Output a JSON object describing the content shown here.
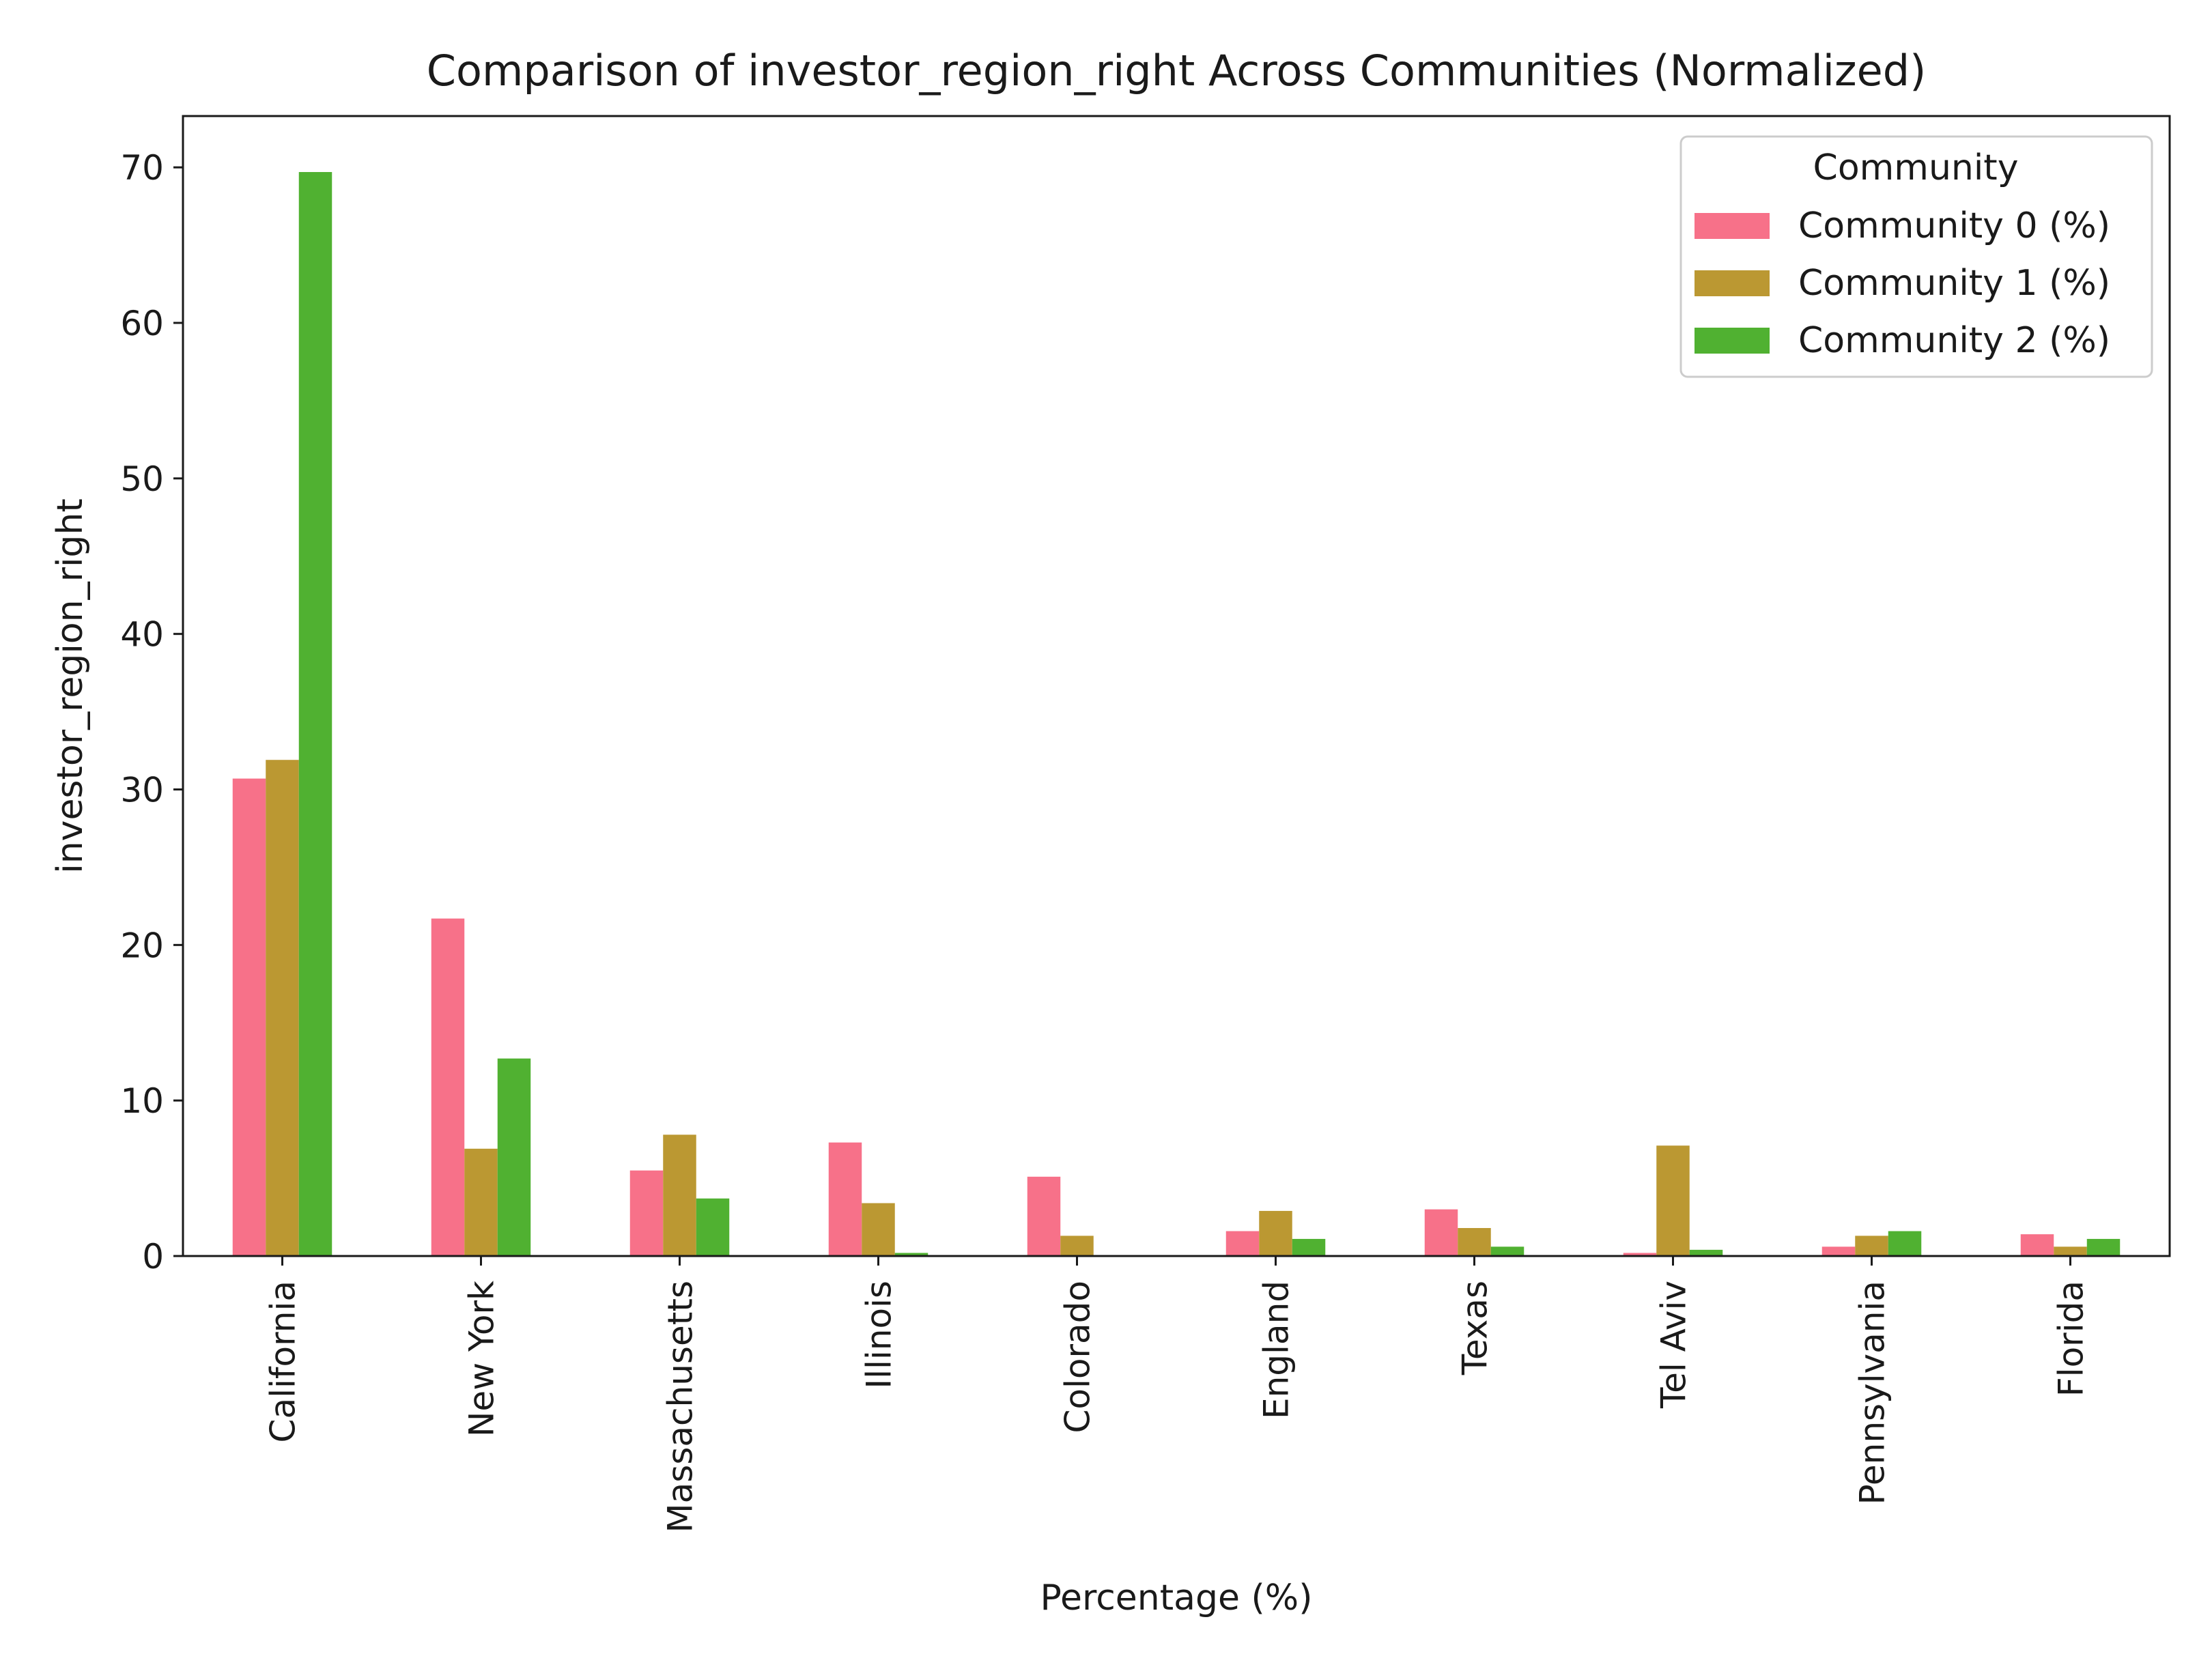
{
  "chart_data": {
    "type": "bar",
    "title": "Comparison of investor_region_right Across Communities (Normalized)",
    "xlabel": "Percentage (%)",
    "ylabel": "investor_region_right",
    "ylim": [
      0,
      73.3
    ],
    "yticks": [
      0,
      10,
      20,
      30,
      40,
      50,
      60,
      70
    ],
    "grid": false,
    "legend_title": "Community",
    "legend_position": "top-right",
    "categories": [
      "California",
      "New York",
      "Massachusetts",
      "Illinois",
      "Colorado",
      "England",
      "Texas",
      "Tel Aviv",
      "Pennsylvania",
      "Florida"
    ],
    "series": [
      {
        "name": "Community 0 (%)",
        "color": "#f77189",
        "values": [
          30.7,
          21.7,
          5.5,
          7.3,
          5.1,
          1.6,
          3.0,
          0.2,
          0.6,
          1.4
        ]
      },
      {
        "name": "Community 1 (%)",
        "color": "#bb9832",
        "values": [
          31.9,
          6.9,
          7.8,
          3.4,
          1.3,
          2.9,
          1.8,
          7.1,
          1.3,
          0.6
        ]
      },
      {
        "name": "Community 2 (%)",
        "color": "#50b131",
        "values": [
          69.7,
          12.7,
          3.7,
          0.2,
          0.0,
          1.1,
          0.6,
          0.4,
          1.6,
          1.1
        ]
      }
    ]
  }
}
